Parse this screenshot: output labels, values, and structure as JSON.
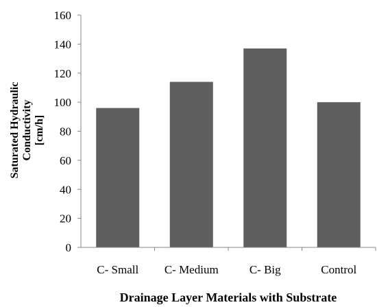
{
  "chart_data": {
    "type": "bar",
    "categories": [
      "C- Small",
      "C- Medium",
      "C- Big",
      "Control"
    ],
    "values": [
      96,
      114,
      137,
      100
    ],
    "title": "",
    "xlabel": "Drainage Layer Materials with Substrate",
    "ylabel_lines": [
      "Saturated Hydraulic",
      "Conductivity",
      "[cm/h]"
    ],
    "ylim": [
      0,
      160
    ],
    "yticks": [
      0,
      20,
      40,
      60,
      80,
      100,
      120,
      140,
      160
    ],
    "grid": false,
    "legend": "none",
    "colors": {
      "bar": "#5f5f5f",
      "axis": "#868686",
      "text": "#000000"
    }
  }
}
